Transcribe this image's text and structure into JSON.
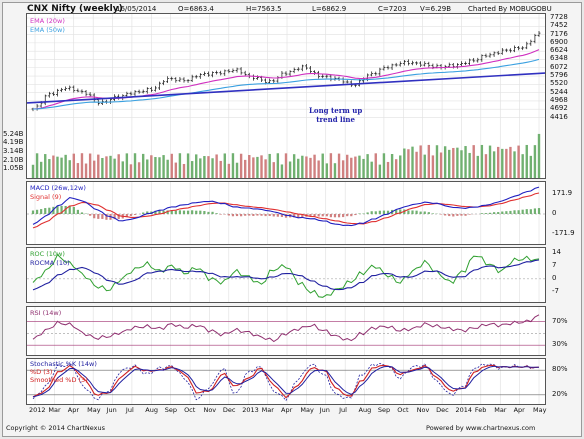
{
  "header": {
    "title": "CNX Nifty (weekly)",
    "date": "16/05/2014",
    "open": "O=6863.4",
    "high": "H=7563.5",
    "low": "L=6862.9",
    "close": "C=7203",
    "volume": "V=6.29B",
    "charted_by": "Charted By MOBUGOBU"
  },
  "footer": {
    "copyright": "Copyright © 2014 ChartNexus",
    "powered": "Powered by www.chartnexus.com"
  },
  "annotation": {
    "line1": "Long term up",
    "line2": "trend line"
  },
  "chart_data": [
    {
      "type": "candlestick",
      "name": "price",
      "legend": [
        "EMA (20w)",
        "EMA (50w)"
      ],
      "colors": {
        "candle": "#111111",
        "ema20": "#d030c0",
        "ema50": "#3aa0e0",
        "trend": "#3030c0",
        "vol_up": "#70b070",
        "vol_down": "#d08080"
      },
      "price_ticks": [
        "7728",
        "7452",
        "7176",
        "6900",
        "6624",
        "6348",
        "6072",
        "5796",
        "5520",
        "5244",
        "4968",
        "4692",
        "4416"
      ],
      "price_range": [
        4400,
        7728
      ],
      "volume_ticks": [
        "5.24B",
        "4.19B",
        "3.14B",
        "2.10B",
        "1.05B"
      ],
      "volume_range": [
        0,
        6.29
      ],
      "x_labels": [
        "2012",
        "Mar",
        "Apr",
        "May",
        "Jun",
        "Jul",
        "Aug",
        "Sep",
        "Oct",
        "Nov",
        "Dec",
        "2013",
        "Mar",
        "Apr",
        "May",
        "Jun",
        "Jul",
        "Aug",
        "Sep",
        "Oct",
        "Nov",
        "Dec",
        "2014",
        "Feb",
        "Mar",
        "Apr",
        "May"
      ],
      "close_anchors": [
        4700,
        5200,
        5400,
        5250,
        4900,
        5100,
        5250,
        5350,
        5700,
        5650,
        5850,
        5900,
        6000,
        5750,
        5600,
        5900,
        6100,
        5800,
        5700,
        5500,
        5850,
        6100,
        6250,
        6200,
        6100,
        6150,
        6300,
        6500,
        6650,
        6750,
        7200
      ],
      "trendline": {
        "start": 4900,
        "end": 5900
      }
    },
    {
      "type": "line",
      "name": "MACD",
      "legend": [
        "MACD (26w,12w)",
        "Signal (9)"
      ],
      "colors": {
        "macd": "#2020c0",
        "signal": "#e03030",
        "hist_pos": "#70b070",
        "hist_neg": "#d08080"
      },
      "y_ticks": [
        "171.9",
        "0",
        "-171.9"
      ],
      "y_range": [
        -250,
        250
      ],
      "macd_anchors": [
        -90,
        -20,
        70,
        140,
        110,
        40,
        -20,
        -60,
        -40,
        0,
        30,
        60,
        80,
        100,
        110,
        90,
        60,
        50,
        40,
        20,
        -10,
        -30,
        -40,
        -60,
        -90,
        -100,
        -80,
        -40,
        0,
        50,
        80,
        100,
        90,
        60,
        50,
        60,
        80,
        110,
        150,
        190,
        230
      ],
      "signal_anchors": [
        -120,
        -70,
        0,
        70,
        100,
        80,
        30,
        -20,
        -30,
        -20,
        0,
        30,
        50,
        70,
        90,
        95,
        80,
        65,
        55,
        40,
        20,
        0,
        -20,
        -40,
        -60,
        -80,
        -85,
        -65,
        -30,
        10,
        50,
        80,
        90,
        80,
        65,
        60,
        70,
        90,
        120,
        150,
        180
      ]
    },
    {
      "type": "line",
      "name": "ROC",
      "legend": [
        "ROC (10w)",
        "ROCMA (10)"
      ],
      "colors": {
        "roc": "#30a030",
        "rocma": "#2020a0"
      },
      "y_ticks": [
        "14",
        "7",
        "0",
        "-7"
      ],
      "y_range": [
        -12,
        15
      ],
      "roc_anchors": [
        -2,
        4,
        12,
        8,
        2,
        -4,
        -6,
        0,
        5,
        8,
        4,
        7,
        3,
        6,
        0,
        -2,
        4,
        1,
        -3,
        5,
        7,
        -2,
        -7,
        -10,
        -6,
        -2,
        3,
        7,
        2,
        -2,
        4,
        9,
        3,
        -2,
        4,
        13,
        8,
        4,
        10,
        11,
        10
      ],
      "rocma_anchors": [
        -6,
        -3,
        2,
        5,
        6,
        3,
        -1,
        -3,
        -1,
        3,
        4,
        5,
        4,
        4,
        3,
        1,
        1,
        1,
        0,
        1,
        3,
        2,
        -1,
        -4,
        -6,
        -5,
        -2,
        2,
        3,
        1,
        1,
        4,
        4,
        1,
        1,
        5,
        7,
        6,
        7,
        9,
        10
      ]
    },
    {
      "type": "line",
      "name": "RSI",
      "legend": [
        "RSI (14w)"
      ],
      "colors": {
        "rsi": "#903070",
        "levels": "#a03070"
      },
      "y_ticks": [
        "70%",
        "30%"
      ],
      "y_range": [
        15,
        90
      ],
      "overbought": 70,
      "oversold": 30,
      "rsi_anchors": [
        40,
        55,
        68,
        65,
        50,
        42,
        45,
        52,
        60,
        62,
        58,
        66,
        60,
        64,
        55,
        48,
        56,
        52,
        44,
        38,
        50,
        58,
        64,
        55,
        45,
        38,
        50,
        60,
        62,
        55,
        58,
        66,
        62,
        58,
        55,
        60,
        66,
        64,
        68,
        70,
        80
      ]
    },
    {
      "type": "line",
      "name": "Stochastic",
      "legend": [
        "Stochastic %K (14w)",
        "%D (3)",
        "Smoothed %D (3)"
      ],
      "colors": {
        "k": "#2020a0",
        "d": "#d02020",
        "smoothed": "#2020a0"
      },
      "y_ticks": [
        "80%",
        "20%"
      ],
      "y_range": [
        0,
        100
      ],
      "overbought": 80,
      "oversold": 20,
      "k_anchors": [
        10,
        40,
        90,
        92,
        40,
        10,
        30,
        80,
        90,
        70,
        85,
        90,
        60,
        10,
        40,
        85,
        20,
        75,
        88,
        30,
        10,
        60,
        95,
        70,
        20,
        10,
        70,
        95,
        92,
        60,
        88,
        92,
        50,
        20,
        40,
        88,
        95,
        85,
        90,
        88,
        85
      ],
      "d_anchors": [
        15,
        30,
        75,
        90,
        60,
        20,
        25,
        65,
        88,
        78,
        80,
        88,
        70,
        25,
        30,
        72,
        40,
        60,
        85,
        45,
        15,
        45,
        85,
        80,
        35,
        15,
        55,
        88,
        92,
        70,
        80,
        90,
        60,
        30,
        35,
        78,
        92,
        88,
        88,
        88,
        86
      ]
    }
  ]
}
